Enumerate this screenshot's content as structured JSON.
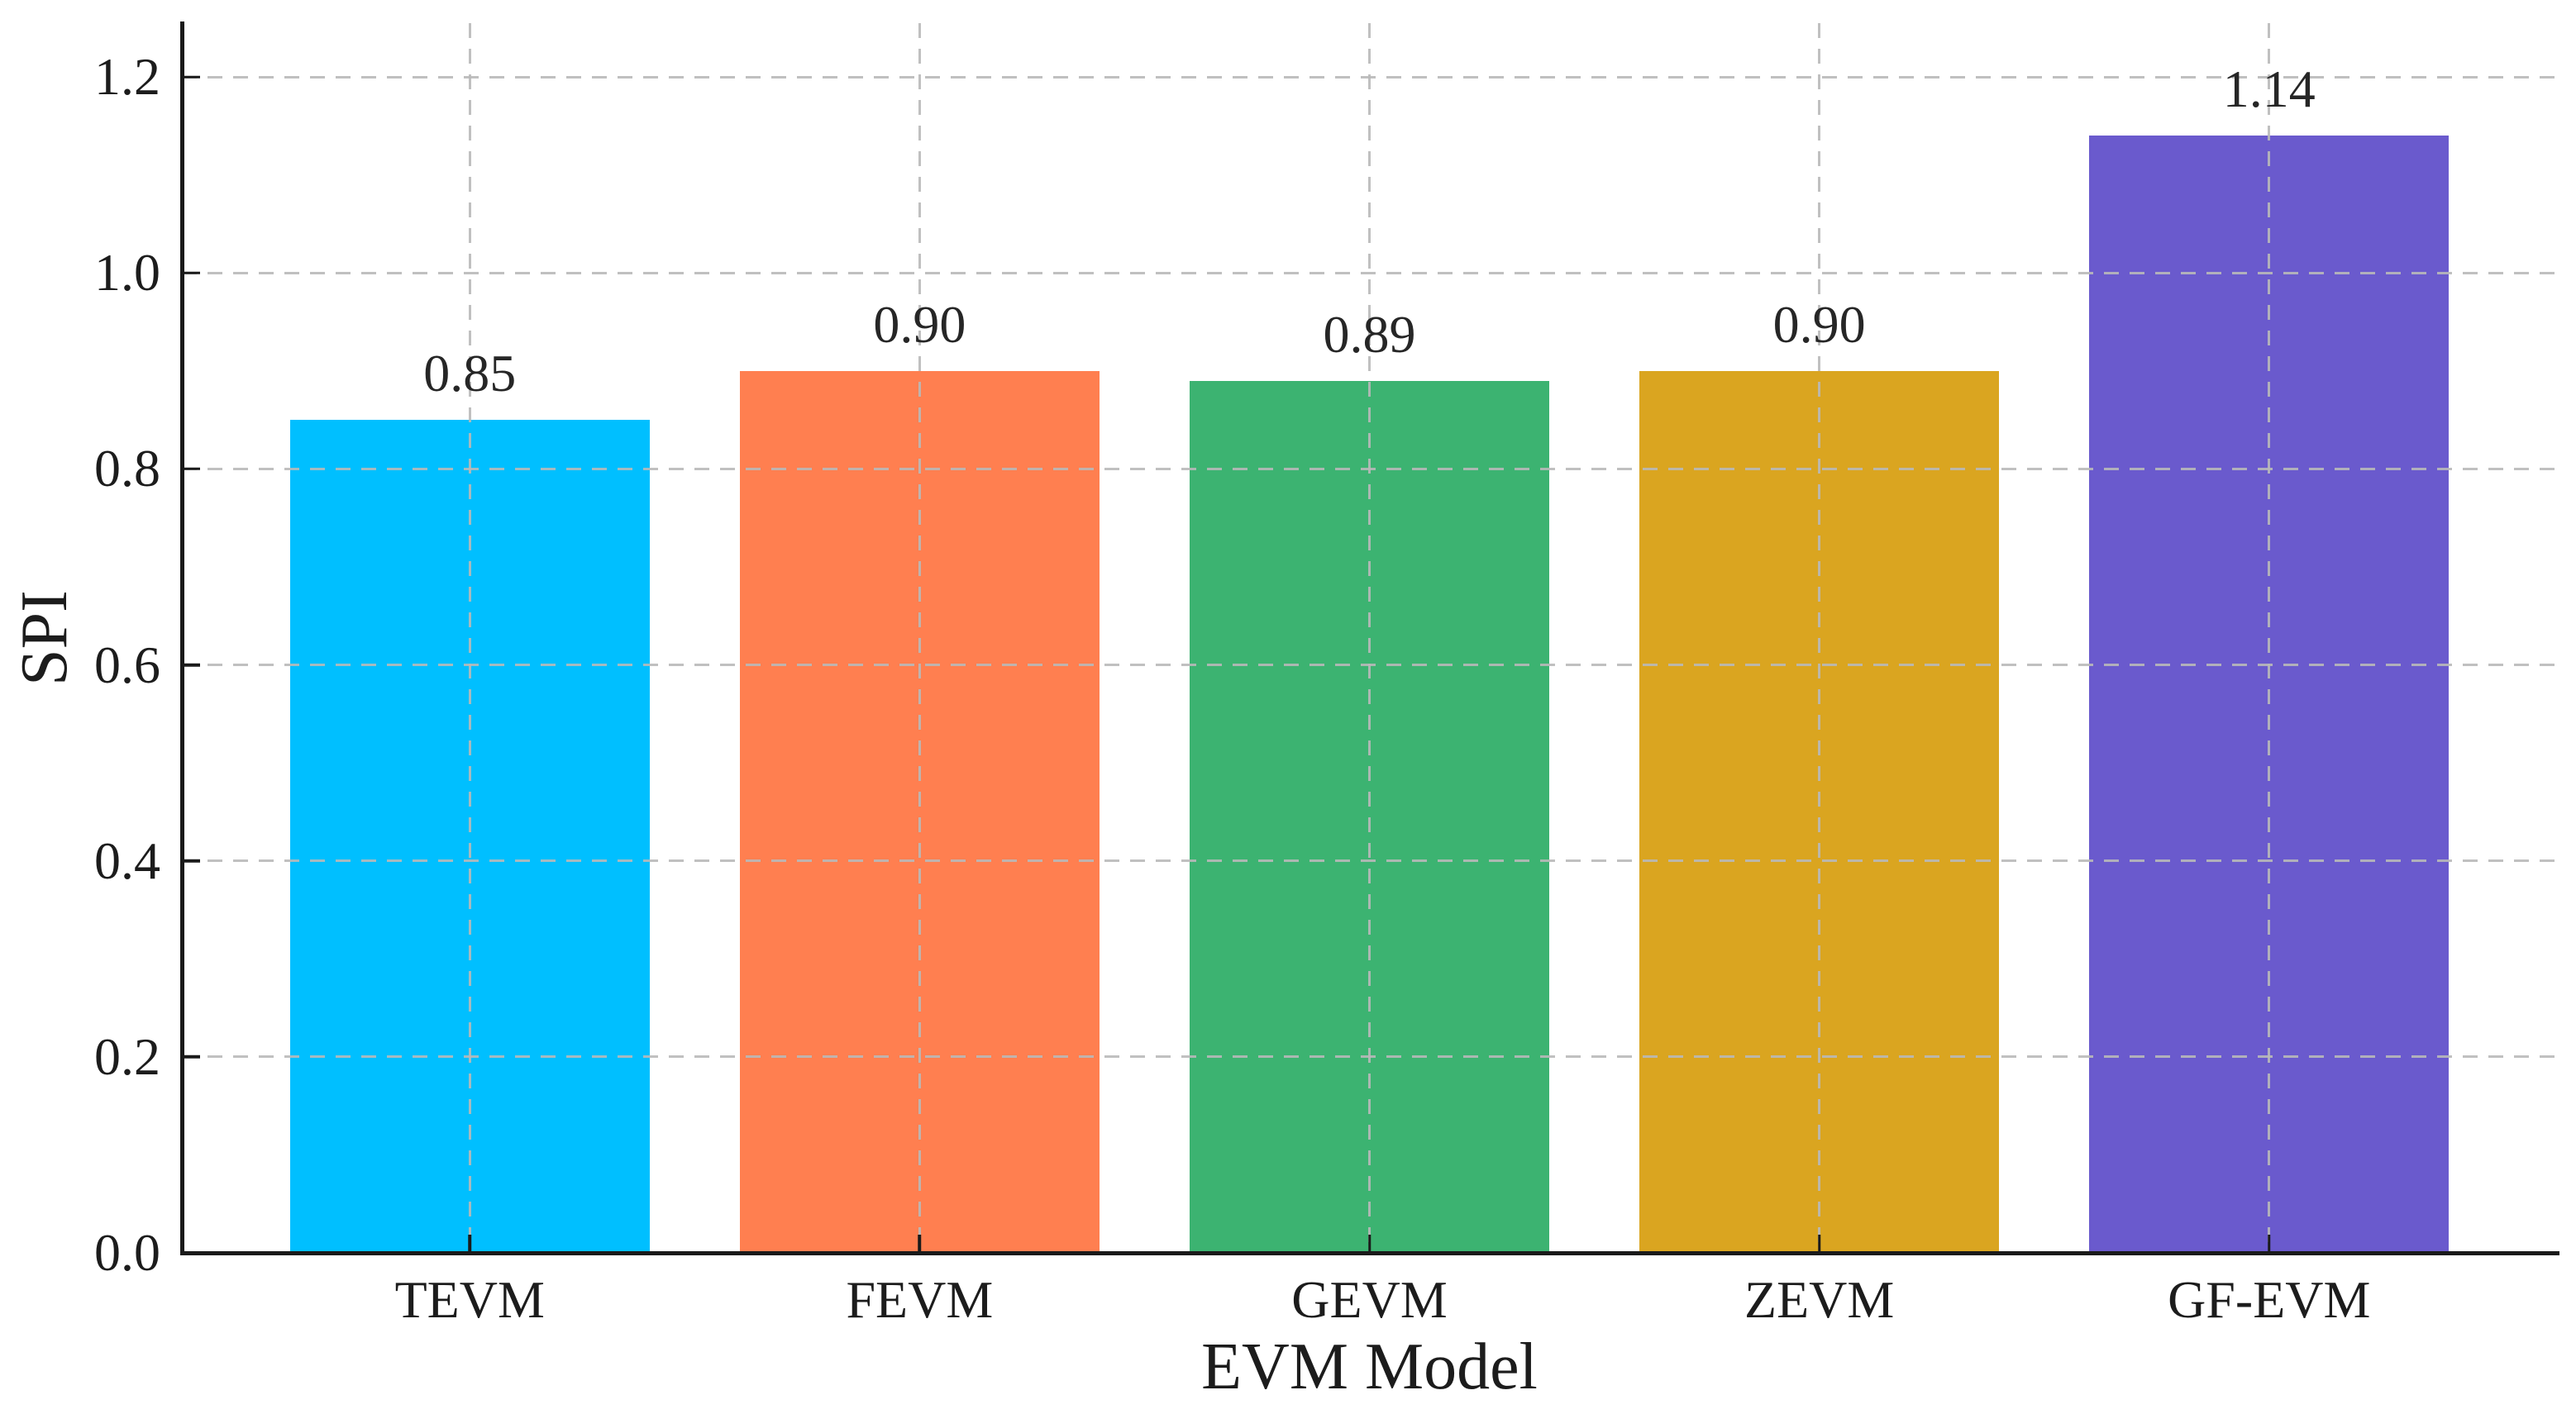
{
  "figure": {
    "background_color": "#ffffff"
  },
  "chart_data": {
    "type": "bar",
    "title": "",
    "xlabel": "EVM Model",
    "ylabel": "SPI",
    "categories": [
      "TEVM",
      "FEVM",
      "GEVM",
      "ZEVM",
      "GF-EVM"
    ],
    "values": [
      0.85,
      0.9,
      0.89,
      0.9,
      1.14
    ],
    "bar_labels": [
      "0.85",
      "0.90",
      "0.89",
      "0.90",
      "1.14"
    ],
    "bar_colors": [
      "#00BFFF",
      "#FF7F50",
      "#3CB371",
      "#DAA520",
      "#6A5ACD"
    ],
    "yticks": [
      0.0,
      0.2,
      0.4,
      0.6,
      0.8,
      1.0,
      1.2
    ],
    "ytick_labels": [
      "0.0",
      "0.2",
      "0.4",
      "0.6",
      "0.8",
      "1.0",
      "1.2"
    ],
    "ylim": [
      0,
      1.255
    ],
    "xlim": [
      -0.64,
      4.64
    ],
    "bar_width_data_units": 0.8,
    "grid": "dashed-both-above-bars",
    "legend": "none",
    "styles": {
      "grid_color": "#b9b9b9",
      "axis_color": "#1a1a1a",
      "text_color": "#1c1c1c",
      "value_label_color": "#262626"
    }
  }
}
